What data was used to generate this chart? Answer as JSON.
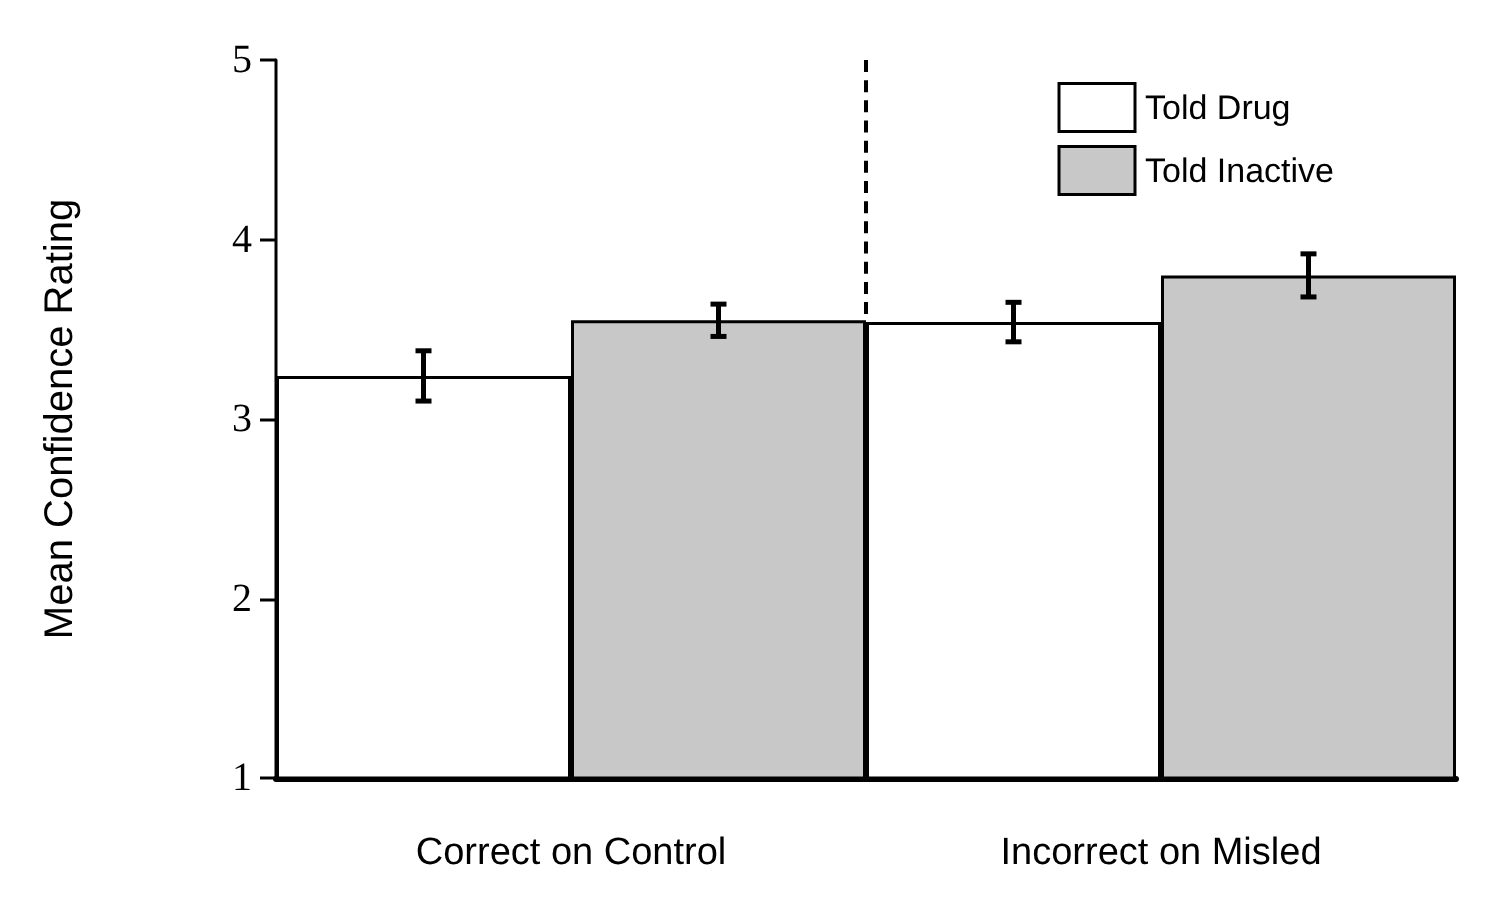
{
  "chart_data": {
    "type": "bar",
    "ylabel": "Mean Confidence Rating",
    "categories": [
      "Correct on Control",
      "Incorrect on Misled"
    ],
    "series": [
      {
        "name": "Told Drug",
        "color": "#ffffff",
        "values": [
          3.24,
          3.54
        ],
        "errors": [
          0.14,
          0.11
        ]
      },
      {
        "name": "Told Inactive",
        "color": "#c8c8c8",
        "values": [
          3.55,
          3.8
        ],
        "errors": [
          0.09,
          0.12
        ]
      }
    ],
    "ylim": [
      1,
      5
    ],
    "yticks": [
      1,
      2,
      3,
      4,
      5
    ],
    "grid": false,
    "legend": "top right"
  }
}
